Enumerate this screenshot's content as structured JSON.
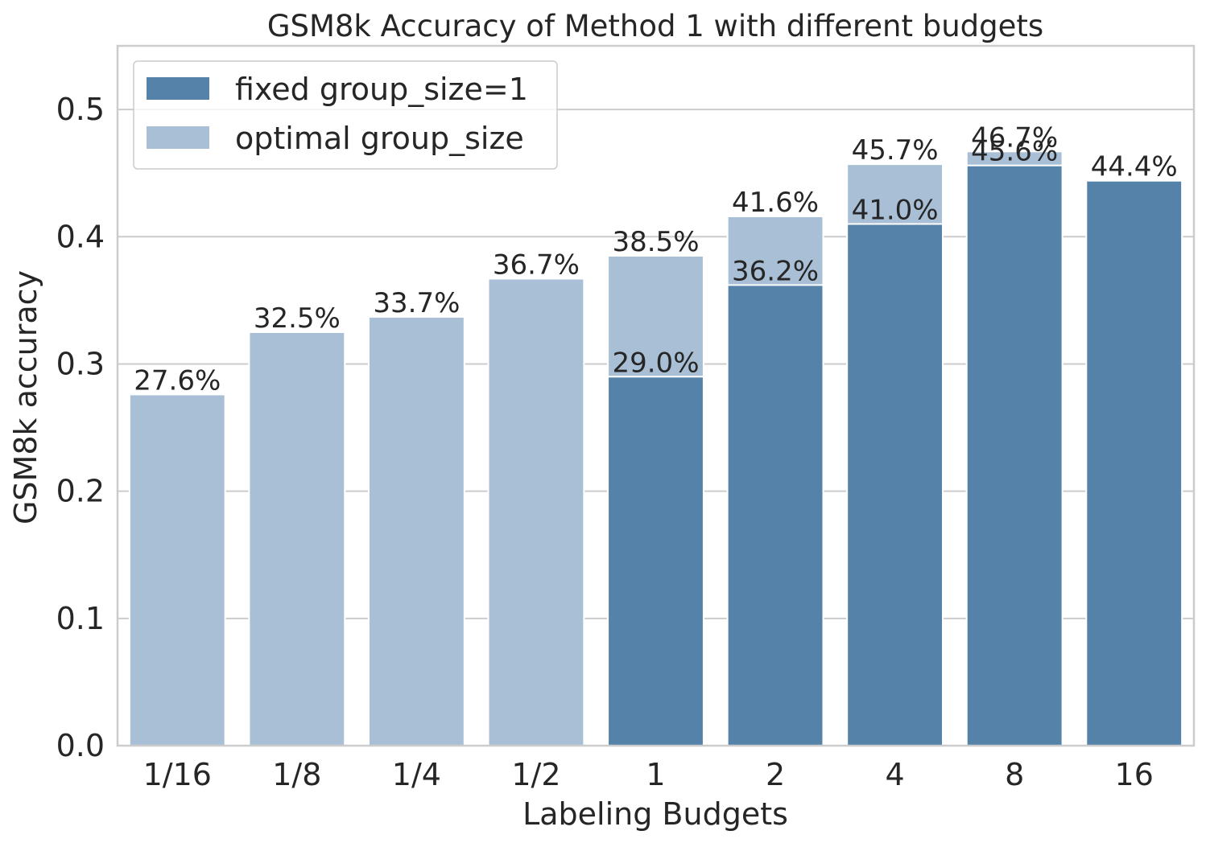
{
  "chart_data": {
    "type": "bar",
    "title": "GSM8k Accuracy of Method 1 with different budgets",
    "xlabel": "Labeling Budgets",
    "ylabel": "GSM8k accuracy",
    "ylim": [
      0,
      0.55
    ],
    "yticks": [
      "0.0",
      "0.1",
      "0.2",
      "0.3",
      "0.4",
      "0.5"
    ],
    "ytick_values": [
      0,
      0.1,
      0.2,
      0.3,
      0.4,
      0.5
    ],
    "categories": [
      "1/16",
      "1/8",
      "1/4",
      "1/2",
      "1",
      "2",
      "4",
      "8",
      "16"
    ],
    "grid": true,
    "legend_position": "top-left",
    "series": [
      {
        "name": "optimal group_size",
        "color": "#a9bfd5",
        "values": [
          0.276,
          0.325,
          0.337,
          0.367,
          0.385,
          0.416,
          0.457,
          0.467,
          null
        ],
        "labels": [
          "27.6%",
          "32.5%",
          "33.7%",
          "36.7%",
          "38.5%",
          "41.6%",
          "45.7%",
          "46.7%",
          ""
        ]
      },
      {
        "name": "fixed group_size=1",
        "color": "#5482a8",
        "values": [
          null,
          null,
          null,
          null,
          0.29,
          0.362,
          0.41,
          0.456,
          0.444
        ],
        "labels": [
          "",
          "",
          "",
          "",
          "29.0%",
          "36.2%",
          "41.0%",
          "45.6%",
          "44.4%"
        ]
      }
    ],
    "legend": [
      {
        "label": "fixed group_size=1",
        "color": "#5482a8"
      },
      {
        "label": "optimal group_size",
        "color": "#a9bfd5"
      }
    ]
  }
}
